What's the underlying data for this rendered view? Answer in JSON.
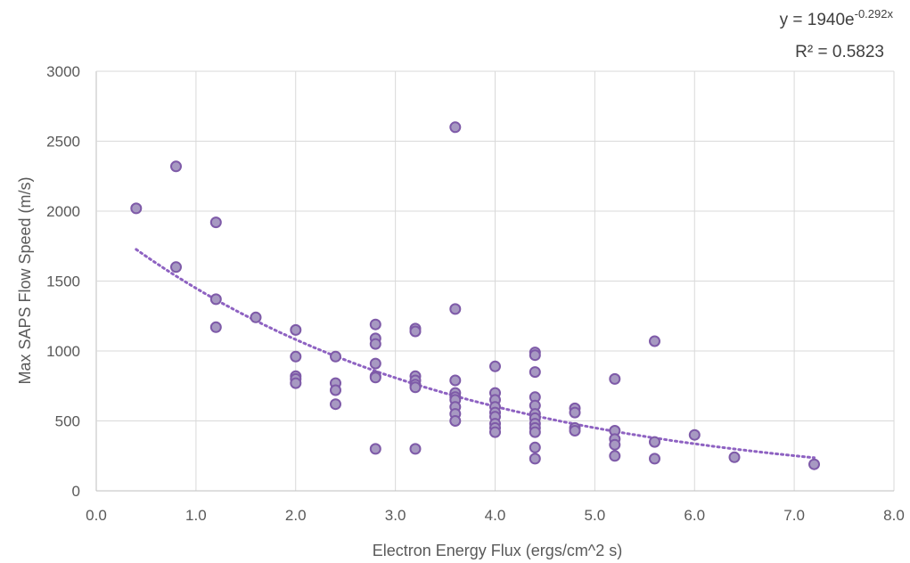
{
  "chart_data": {
    "type": "scatter",
    "title": "",
    "xlabel": "Electron Energy Flux (ergs/cm^2 s)",
    "ylabel": "Max SAPS Flow Speed (m/s)",
    "xlim": [
      0,
      8
    ],
    "ylim": [
      0,
      3000
    ],
    "x_ticks": [
      "0.0",
      "1.0",
      "2.0",
      "3.0",
      "4.0",
      "5.0",
      "6.0",
      "7.0",
      "8.0"
    ],
    "y_ticks": [
      "0",
      "500",
      "1000",
      "1500",
      "2000",
      "2500",
      "3000"
    ],
    "grid": true,
    "point_color": "#a799c2",
    "point_edge_color": "#7e5aa8",
    "trendline": {
      "type": "exponential",
      "a": 1940,
      "b": -0.292,
      "x_range": [
        0.4,
        7.2
      ],
      "color": "#8e62c2",
      "equation_prefix": "y = 1940e",
      "equation_exponent": "-0.292x",
      "r2_label": "R² = 0.5823"
    },
    "series": [
      {
        "points": [
          [
            0.4,
            2020
          ],
          [
            0.8,
            2320
          ],
          [
            0.8,
            1600
          ],
          [
            1.2,
            1920
          ],
          [
            1.2,
            1370
          ],
          [
            1.2,
            1170
          ],
          [
            1.6,
            1240
          ],
          [
            2.0,
            1150
          ],
          [
            2.0,
            960
          ],
          [
            2.0,
            820
          ],
          [
            2.0,
            800
          ],
          [
            2.0,
            770
          ],
          [
            2.4,
            960
          ],
          [
            2.4,
            770
          ],
          [
            2.4,
            720
          ],
          [
            2.4,
            620
          ],
          [
            2.8,
            1190
          ],
          [
            2.8,
            1090
          ],
          [
            2.8,
            1050
          ],
          [
            2.8,
            910
          ],
          [
            2.8,
            820
          ],
          [
            2.8,
            810
          ],
          [
            2.8,
            300
          ],
          [
            3.2,
            1160
          ],
          [
            3.2,
            1140
          ],
          [
            3.2,
            820
          ],
          [
            3.2,
            790
          ],
          [
            3.2,
            760
          ],
          [
            3.2,
            740
          ],
          [
            3.2,
            300
          ],
          [
            3.6,
            2600
          ],
          [
            3.6,
            1300
          ],
          [
            3.6,
            790
          ],
          [
            3.6,
            700
          ],
          [
            3.6,
            670
          ],
          [
            3.6,
            650
          ],
          [
            3.6,
            600
          ],
          [
            3.6,
            550
          ],
          [
            3.6,
            500
          ],
          [
            4.0,
            890
          ],
          [
            4.0,
            700
          ],
          [
            4.0,
            650
          ],
          [
            4.0,
            600
          ],
          [
            4.0,
            560
          ],
          [
            4.0,
            530
          ],
          [
            4.0,
            480
          ],
          [
            4.0,
            450
          ],
          [
            4.0,
            420
          ],
          [
            4.4,
            990
          ],
          [
            4.4,
            970
          ],
          [
            4.4,
            850
          ],
          [
            4.4,
            670
          ],
          [
            4.4,
            610
          ],
          [
            4.4,
            550
          ],
          [
            4.4,
            520
          ],
          [
            4.4,
            480
          ],
          [
            4.4,
            450
          ],
          [
            4.4,
            420
          ],
          [
            4.4,
            310
          ],
          [
            4.4,
            230
          ],
          [
            4.8,
            590
          ],
          [
            4.8,
            560
          ],
          [
            4.8,
            450
          ],
          [
            4.8,
            430
          ],
          [
            5.2,
            800
          ],
          [
            5.2,
            430
          ],
          [
            5.2,
            370
          ],
          [
            5.2,
            330
          ],
          [
            5.2,
            250
          ],
          [
            5.6,
            1070
          ],
          [
            5.6,
            350
          ],
          [
            5.6,
            230
          ],
          [
            6.0,
            400
          ],
          [
            6.4,
            240
          ],
          [
            7.2,
            190
          ]
        ]
      }
    ]
  }
}
